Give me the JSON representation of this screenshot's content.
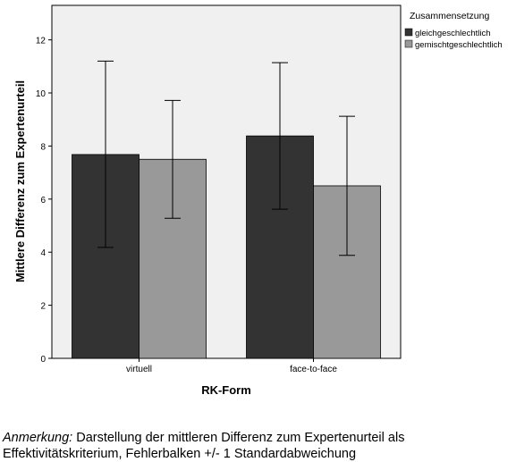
{
  "chart_data": {
    "type": "bar",
    "xlabel": "RK-Form",
    "ylabel": "Mittlere Differenz zum Expertenurteil",
    "categories": [
      "virtuell",
      "face-to-face"
    ],
    "ylim": [
      0,
      13.3
    ],
    "yticks": [
      0,
      2,
      4,
      6,
      8,
      10,
      12
    ],
    "legend_title": "Zusammensetzung",
    "legend_position": "top-right",
    "grid": false,
    "series": [
      {
        "name": "gleichgeschlechtlich",
        "color": "#333333",
        "values": [
          7.68,
          8.38
        ],
        "error_low": [
          4.18,
          5.62
        ],
        "error_high": [
          11.2,
          11.14
        ]
      },
      {
        "name": "gemischtgeschlechtlich",
        "color": "#999999",
        "values": [
          7.5,
          6.5
        ],
        "error_low": [
          5.28,
          3.88
        ],
        "error_high": [
          9.72,
          9.12
        ]
      }
    ]
  },
  "caption": {
    "label": "Anmerkung:",
    "line1": " Darstellung der mittleren Differenz zum Expertenurteil als",
    "line2": "Effektivitätskriterium, Fehlerbalken +/- 1 Standardabweichung"
  }
}
